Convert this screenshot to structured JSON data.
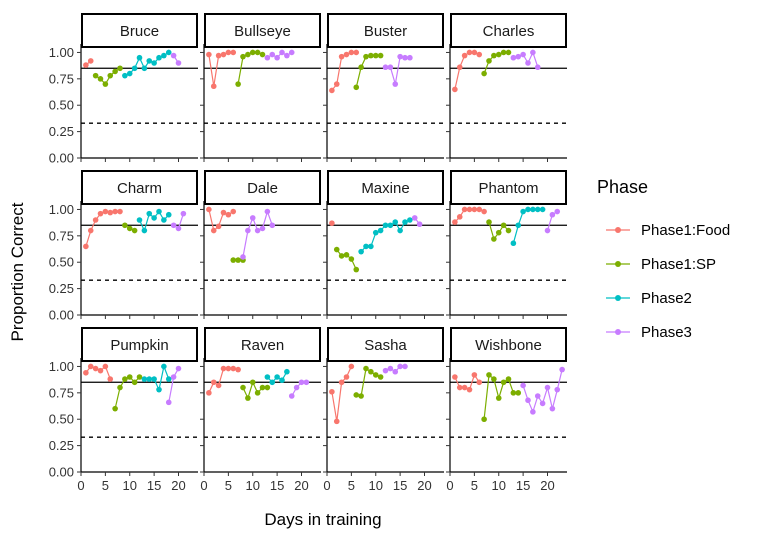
{
  "chart_data": {
    "type": "line",
    "facet_layout": "3x4 grid",
    "xlabel": "Days in training",
    "ylabel": "Proportion Correct",
    "xlim": [
      0,
      24
    ],
    "ylim": [
      0,
      1.08
    ],
    "x_ticks": [
      0,
      5,
      10,
      15,
      20
    ],
    "x_tick_labels": [
      "0",
      "5",
      "10",
      "15",
      "20"
    ],
    "y_ticks": [
      0,
      0.25,
      0.5,
      0.75,
      1.0
    ],
    "y_tick_labels": [
      "0.00",
      "0.25",
      "0.50",
      "0.75",
      "1.00"
    ],
    "reference_lines": [
      {
        "y": 0.85,
        "style": "solid"
      },
      {
        "y": 0.33,
        "style": "dashed"
      }
    ],
    "legend": {
      "title": "Phase",
      "placement": "right",
      "entries": [
        {
          "name": "Phase1:Food",
          "color": "#F8766D"
        },
        {
          "name": "Phase1:SP",
          "color": "#7CAE00"
        },
        {
          "name": "Phase2",
          "color": "#00BFC4"
        },
        {
          "name": "Phase3",
          "color": "#C77CFF"
        }
      ]
    },
    "panels": [
      {
        "name": "Bruce",
        "series": [
          {
            "phase": "Phase1:Food",
            "x": [
              1,
              2
            ],
            "y": [
              0.88,
              0.92
            ]
          },
          {
            "phase": "Phase1:SP",
            "x": [
              3,
              4,
              5,
              6,
              7,
              8
            ],
            "y": [
              0.78,
              0.75,
              0.7,
              0.78,
              0.82,
              0.85
            ]
          },
          {
            "phase": "Phase2",
            "x": [
              9,
              10,
              11,
              12,
              13,
              14,
              15,
              16,
              17,
              18
            ],
            "y": [
              0.78,
              0.8,
              0.85,
              0.95,
              0.85,
              0.92,
              0.9,
              0.95,
              0.97,
              1.0
            ]
          },
          {
            "phase": "Phase3",
            "x": [
              19,
              20
            ],
            "y": [
              0.97,
              0.9
            ]
          }
        ]
      },
      {
        "name": "Bullseye",
        "series": [
          {
            "phase": "Phase1:Food",
            "x": [
              1,
              2,
              3,
              4,
              5,
              6
            ],
            "y": [
              0.98,
              0.68,
              0.97,
              0.98,
              1.0,
              1.0
            ]
          },
          {
            "phase": "Phase1:SP",
            "x": [
              7,
              8,
              9,
              10,
              11,
              12
            ],
            "y": [
              0.7,
              0.96,
              0.98,
              1.0,
              1.0,
              0.98
            ]
          },
          {
            "phase": "Phase3",
            "x": [
              13,
              14,
              15,
              16,
              17,
              18
            ],
            "y": [
              0.95,
              0.98,
              0.95,
              1.0,
              0.97,
              1.0
            ]
          }
        ]
      },
      {
        "name": "Buster",
        "series": [
          {
            "phase": "Phase1:Food",
            "x": [
              1,
              2,
              3,
              4,
              5,
              6
            ],
            "y": [
              0.64,
              0.7,
              0.96,
              0.98,
              1.0,
              1.0
            ]
          },
          {
            "phase": "Phase1:SP",
            "x": [
              6,
              7,
              8,
              9,
              10,
              11
            ],
            "y": [
              0.67,
              0.86,
              0.96,
              0.97,
              0.97,
              0.97
            ]
          },
          {
            "phase": "Phase3",
            "x": [
              12,
              13,
              14,
              15,
              16,
              17
            ],
            "y": [
              0.86,
              0.86,
              0.7,
              0.96,
              0.95,
              0.95
            ]
          }
        ]
      },
      {
        "name": "Charles",
        "series": [
          {
            "phase": "Phase1:Food",
            "x": [
              1,
              2,
              3,
              4,
              5,
              6
            ],
            "y": [
              0.65,
              0.86,
              0.97,
              1.0,
              1.0,
              0.98
            ]
          },
          {
            "phase": "Phase1:SP",
            "x": [
              7,
              8,
              9,
              10,
              11,
              12
            ],
            "y": [
              0.8,
              0.92,
              0.97,
              0.98,
              1.0,
              1.0
            ]
          },
          {
            "phase": "Phase3",
            "x": [
              13,
              14,
              15,
              16,
              17,
              18
            ],
            "y": [
              0.95,
              0.96,
              0.98,
              0.9,
              1.0,
              0.86
            ]
          }
        ]
      },
      {
        "name": "Charm",
        "series": [
          {
            "phase": "Phase1:Food",
            "x": [
              1,
              2,
              3,
              4,
              5,
              6,
              7,
              8
            ],
            "y": [
              0.65,
              0.8,
              0.9,
              0.96,
              0.98,
              0.97,
              0.98,
              0.98
            ]
          },
          {
            "phase": "Phase1:SP",
            "x": [
              9,
              10,
              11
            ],
            "y": [
              0.85,
              0.82,
              0.8
            ]
          },
          {
            "phase": "Phase2",
            "x": [
              12,
              13,
              14,
              15,
              16,
              17,
              18
            ],
            "y": [
              0.9,
              0.8,
              0.96,
              0.92,
              0.98,
              0.9,
              0.95
            ]
          },
          {
            "phase": "Phase3",
            "x": [
              19,
              20,
              21
            ],
            "y": [
              0.85,
              0.82,
              0.96
            ]
          }
        ]
      },
      {
        "name": "Dale",
        "series": [
          {
            "phase": "Phase1:Food",
            "x": [
              1,
              2,
              3,
              4,
              5,
              6
            ],
            "y": [
              1.0,
              0.8,
              0.84,
              0.97,
              0.95,
              0.98
            ]
          },
          {
            "phase": "Phase1:SP",
            "x": [
              6,
              7,
              8
            ],
            "y": [
              0.52,
              0.52,
              0.52
            ]
          },
          {
            "phase": "Phase3",
            "x": [
              8,
              9,
              10,
              11,
              12,
              13,
              14
            ],
            "y": [
              0.55,
              0.8,
              0.92,
              0.8,
              0.82,
              0.98,
              0.85
            ]
          }
        ]
      },
      {
        "name": "Maxine",
        "series": [
          {
            "phase": "Phase1:Food",
            "x": [
              1
            ],
            "y": [
              0.87
            ]
          },
          {
            "phase": "Phase1:SP",
            "x": [
              2,
              3,
              4,
              5,
              6
            ],
            "y": [
              0.62,
              0.56,
              0.57,
              0.53,
              0.43
            ]
          },
          {
            "phase": "Phase2",
            "x": [
              7,
              8,
              9,
              10,
              11,
              12,
              13,
              14,
              15,
              16,
              17
            ],
            "y": [
              0.6,
              0.65,
              0.65,
              0.78,
              0.8,
              0.85,
              0.85,
              0.88,
              0.8,
              0.88,
              0.9
            ]
          },
          {
            "phase": "Phase3",
            "x": [
              18,
              19
            ],
            "y": [
              0.92,
              0.86
            ]
          }
        ]
      },
      {
        "name": "Phantom",
        "series": [
          {
            "phase": "Phase1:Food",
            "x": [
              1,
              2,
              3,
              4,
              5,
              6,
              7
            ],
            "y": [
              0.88,
              0.93,
              1.0,
              1.0,
              1.0,
              1.0,
              0.98
            ]
          },
          {
            "phase": "Phase1:SP",
            "x": [
              8,
              9,
              10,
              11,
              12
            ],
            "y": [
              0.88,
              0.72,
              0.78,
              0.85,
              0.8
            ]
          },
          {
            "phase": "Phase2",
            "x": [
              13,
              14,
              15,
              16,
              17,
              18,
              19
            ],
            "y": [
              0.68,
              0.85,
              0.98,
              1.0,
              1.0,
              1.0,
              1.0
            ]
          },
          {
            "phase": "Phase3",
            "x": [
              20,
              21,
              22
            ],
            "y": [
              0.8,
              0.95,
              0.98
            ]
          }
        ]
      },
      {
        "name": "Pumpkin",
        "series": [
          {
            "phase": "Phase1:Food",
            "x": [
              1,
              2,
              3,
              4,
              5,
              6
            ],
            "y": [
              0.94,
              1.0,
              0.98,
              0.96,
              1.0,
              0.88
            ]
          },
          {
            "phase": "Phase1:SP",
            "x": [
              7,
              8,
              9,
              10,
              11,
              12
            ],
            "y": [
              0.6,
              0.8,
              0.88,
              0.9,
              0.85,
              0.9
            ]
          },
          {
            "phase": "Phase2",
            "x": [
              13,
              14,
              15,
              16,
              17,
              18
            ],
            "y": [
              0.88,
              0.88,
              0.88,
              0.78,
              1.0,
              0.88
            ]
          },
          {
            "phase": "Phase3",
            "x": [
              18,
              19,
              20
            ],
            "y": [
              0.66,
              0.9,
              0.98
            ]
          }
        ]
      },
      {
        "name": "Raven",
        "series": [
          {
            "phase": "Phase1:Food",
            "x": [
              1,
              2,
              3,
              4,
              5,
              6,
              7
            ],
            "y": [
              0.75,
              0.85,
              0.82,
              0.98,
              0.98,
              0.98,
              0.97
            ]
          },
          {
            "phase": "Phase1:SP",
            "x": [
              8,
              9,
              10,
              11,
              12,
              13
            ],
            "y": [
              0.8,
              0.7,
              0.85,
              0.75,
              0.8,
              0.8
            ]
          },
          {
            "phase": "Phase2",
            "x": [
              13,
              14,
              15,
              16,
              17
            ],
            "y": [
              0.9,
              0.85,
              0.9,
              0.87,
              0.95
            ]
          },
          {
            "phase": "Phase3",
            "x": [
              18,
              19,
              20,
              21
            ],
            "y": [
              0.72,
              0.8,
              0.85,
              0.85
            ]
          }
        ]
      },
      {
        "name": "Sasha",
        "series": [
          {
            "phase": "Phase1:Food",
            "x": [
              1,
              2,
              3,
              4,
              5
            ],
            "y": [
              0.76,
              0.48,
              0.85,
              0.9,
              1.0
            ]
          },
          {
            "phase": "Phase1:SP",
            "x": [
              6,
              7,
              8,
              9,
              10,
              11
            ],
            "y": [
              0.73,
              0.72,
              0.98,
              0.95,
              0.92,
              0.9
            ]
          },
          {
            "phase": "Phase3",
            "x": [
              12,
              13,
              14,
              15,
              16
            ],
            "y": [
              0.96,
              0.98,
              0.95,
              1.0,
              1.0
            ]
          }
        ]
      },
      {
        "name": "Wishbone",
        "series": [
          {
            "phase": "Phase1:Food",
            "x": [
              1,
              2,
              3,
              4,
              5,
              6
            ],
            "y": [
              0.9,
              0.8,
              0.8,
              0.78,
              0.92,
              0.85
            ]
          },
          {
            "phase": "Phase1:SP",
            "x": [
              7,
              8,
              9,
              10,
              11,
              12,
              13,
              14
            ],
            "y": [
              0.5,
              0.92,
              0.88,
              0.7,
              0.85,
              0.88,
              0.75,
              0.75
            ]
          },
          {
            "phase": "Phase3",
            "x": [
              15,
              16,
              17,
              18,
              19,
              20,
              21,
              22,
              23
            ],
            "y": [
              0.82,
              0.68,
              0.57,
              0.72,
              0.65,
              0.8,
              0.6,
              0.78,
              0.97
            ]
          }
        ]
      }
    ]
  }
}
